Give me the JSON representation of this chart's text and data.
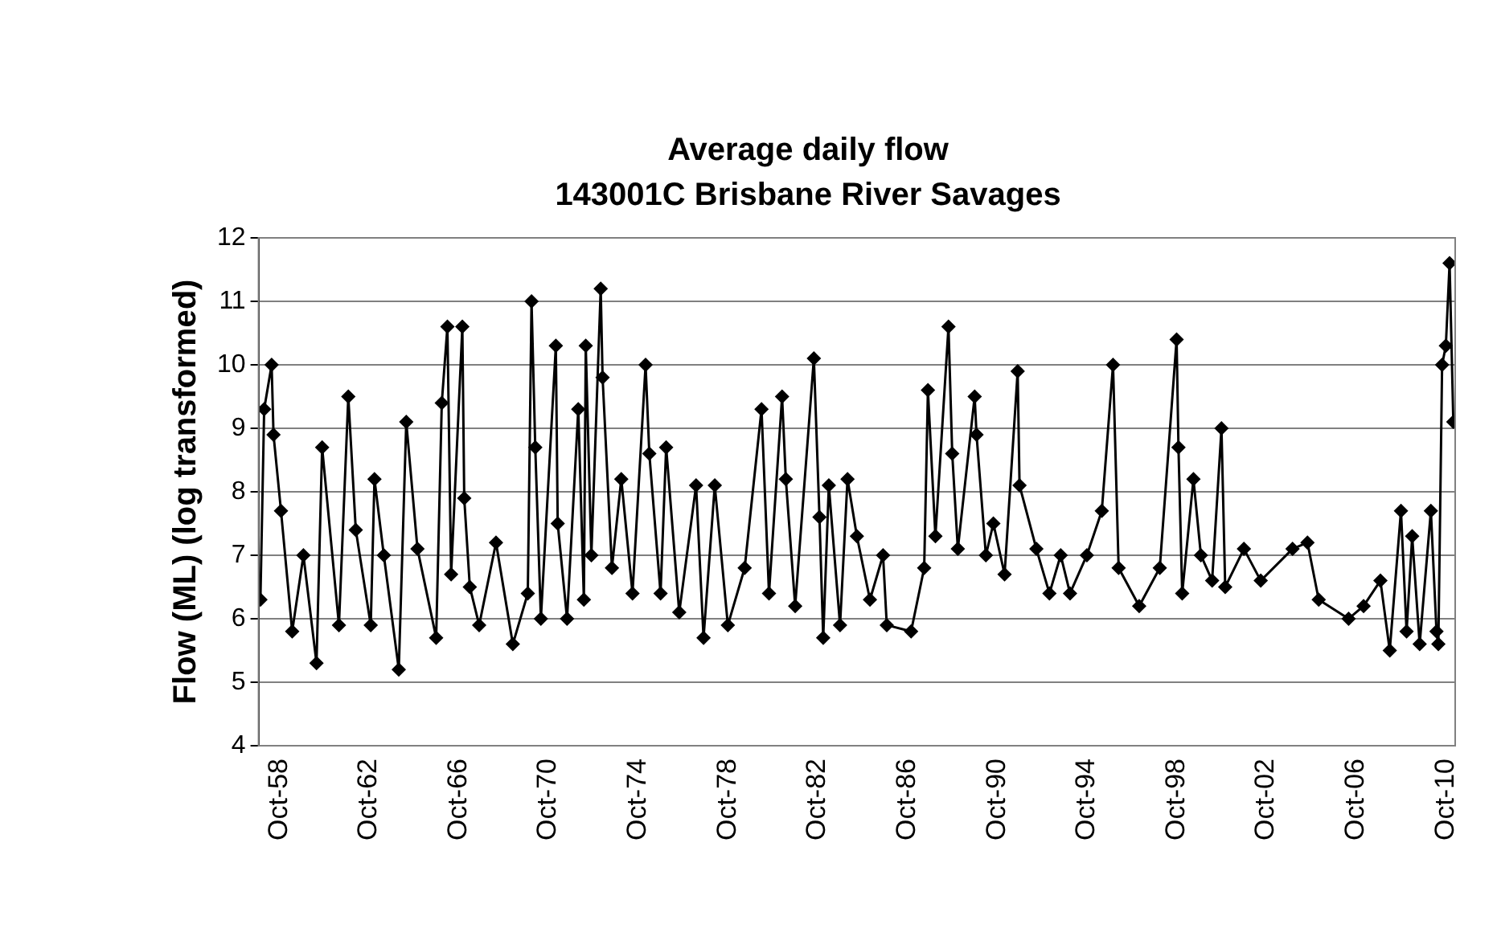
{
  "chart_data": {
    "type": "line",
    "title": "Average daily flow",
    "subtitle": "143001C Brisbane River Savages",
    "ylabel": "Flow (ML) (log transformed)",
    "x": [
      "1957-12",
      "1958-02",
      "1958-06",
      "1958-07",
      "1958-11",
      "1959-05",
      "1959-11",
      "1960-06",
      "1960-09",
      "1961-06",
      "1961-11",
      "1962-03",
      "1962-11",
      "1963-01",
      "1963-06",
      "1964-02",
      "1964-06",
      "1964-12",
      "1965-10",
      "1966-01",
      "1966-04",
      "1966-06",
      "1966-12",
      "1967-01",
      "1967-04",
      "1967-09",
      "1968-06",
      "1969-03",
      "1969-11",
      "1970-01",
      "1970-03",
      "1970-06",
      "1971-02",
      "1971-03",
      "1971-08",
      "1972-02",
      "1972-05",
      "1972-06",
      "1972-09",
      "1973-02",
      "1973-03",
      "1973-08",
      "1974-01",
      "1974-07",
      "1975-02",
      "1975-04",
      "1975-10",
      "1976-01",
      "1976-08",
      "1977-05",
      "1977-09",
      "1978-03",
      "1978-10",
      "1979-07",
      "1980-04",
      "1980-08",
      "1981-03",
      "1981-05",
      "1981-10",
      "1982-08",
      "1982-11",
      "1983-01",
      "1983-04",
      "1983-10",
      "1984-02",
      "1984-07",
      "1985-02",
      "1985-09",
      "1985-11",
      "1986-12",
      "1987-07",
      "1987-09",
      "1988-01",
      "1988-08",
      "1988-10",
      "1989-01",
      "1989-10",
      "1989-11",
      "1990-04",
      "1990-08",
      "1991-02",
      "1991-09",
      "1991-10",
      "1992-07",
      "1993-02",
      "1993-08",
      "1994-01",
      "1994-10",
      "1995-06",
      "1995-12",
      "1996-03",
      "1997-02",
      "1998-01",
      "1998-10",
      "1998-11",
      "1999-01",
      "1999-07",
      "1999-11",
      "2000-05",
      "2000-10",
      "2000-12",
      "2001-10",
      "2002-07",
      "2003-12",
      "2004-08",
      "2005-02",
      "2006-06",
      "2007-02",
      "2007-11",
      "2008-04",
      "2008-10",
      "2009-01",
      "2009-04",
      "2009-08",
      "2010-02",
      "2010-05",
      "2010-06",
      "2010-08",
      "2010-10",
      "2010-12",
      "2011-02"
    ],
    "series": [
      {
        "color": "#000000",
        "values": [
          6.3,
          9.3,
          10.0,
          8.9,
          7.7,
          5.8,
          7.0,
          5.3,
          8.7,
          5.9,
          9.5,
          7.4,
          5.9,
          8.2,
          7.0,
          5.2,
          9.1,
          7.1,
          5.7,
          9.4,
          10.6,
          6.7,
          10.6,
          7.9,
          6.5,
          5.9,
          7.2,
          5.6,
          6.4,
          11.0,
          8.7,
          6.0,
          10.3,
          7.5,
          6.0,
          9.3,
          6.3,
          10.3,
          7.0,
          11.2,
          9.8,
          6.8,
          8.2,
          6.4,
          10.0,
          8.6,
          6.4,
          8.7,
          6.1,
          8.1,
          5.7,
          8.1,
          5.9,
          6.8,
          9.3,
          6.4,
          9.5,
          8.2,
          6.2,
          10.1,
          7.6,
          5.7,
          8.1,
          5.9,
          8.2,
          7.3,
          6.3,
          7.0,
          5.9,
          5.8,
          6.8,
          9.6,
          7.3,
          10.6,
          8.6,
          7.1,
          9.5,
          8.9,
          7.0,
          7.5,
          6.7,
          9.9,
          8.1,
          7.1,
          6.4,
          7.0,
          6.4,
          7.0,
          7.7,
          10.0,
          6.8,
          6.2,
          6.8,
          10.4,
          8.7,
          6.4,
          8.2,
          7.0,
          6.6,
          9.0,
          6.5,
          7.1,
          6.6,
          7.1,
          7.2,
          6.3,
          6.0,
          6.2,
          6.6,
          5.5,
          7.7,
          5.8,
          7.3,
          5.6,
          7.7,
          5.8,
          5.6,
          10.0,
          10.3,
          11.6,
          9.1
        ]
      }
    ],
    "xlim": [
      "1957-11",
      "2011-03"
    ],
    "xticks": [
      {
        "value": "1958-10",
        "label": "Oct-58"
      },
      {
        "value": "1962-10",
        "label": "Oct-62"
      },
      {
        "value": "1966-10",
        "label": "Oct-66"
      },
      {
        "value": "1970-10",
        "label": "Oct-70"
      },
      {
        "value": "1974-10",
        "label": "Oct-74"
      },
      {
        "value": "1978-10",
        "label": "Oct-78"
      },
      {
        "value": "1982-10",
        "label": "Oct-82"
      },
      {
        "value": "1986-10",
        "label": "Oct-86"
      },
      {
        "value": "1990-10",
        "label": "Oct-90"
      },
      {
        "value": "1994-10",
        "label": "Oct-94"
      },
      {
        "value": "1998-10",
        "label": "Oct-98"
      },
      {
        "value": "2002-10",
        "label": "Oct-02"
      },
      {
        "value": "2006-10",
        "label": "Oct-06"
      },
      {
        "value": "2010-10",
        "label": "Oct-10"
      }
    ],
    "ylim": [
      4,
      12
    ],
    "yticks": [
      4,
      5,
      6,
      7,
      8,
      9,
      10,
      11,
      12
    ],
    "grid": "y",
    "legend": false,
    "marker": "diamond",
    "line_style": "solid"
  }
}
